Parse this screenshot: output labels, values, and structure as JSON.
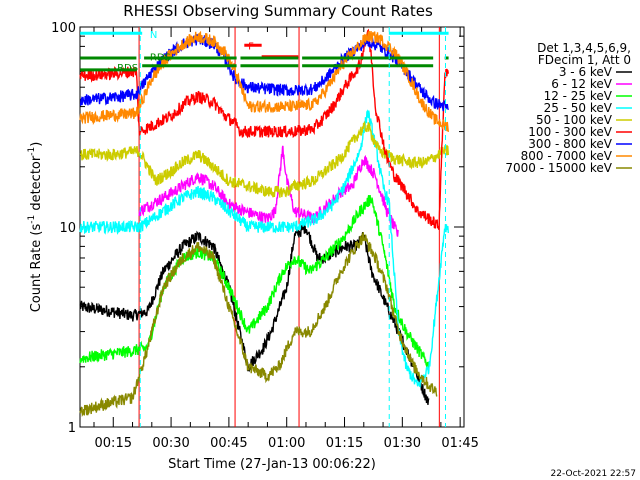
{
  "chart_data": {
    "type": "line",
    "title": "RHESSI Observing Summary Count Rates",
    "xlabel": "Start Time (27-Jan-13 00:06:22)",
    "ylabel": "Count Rate (s",
    "ylabel_sup": "-1",
    "ylabel_tail": " detector",
    "ylabel_end": ")",
    "yscale": "log",
    "ylim": [
      1,
      100
    ],
    "xlim_minutes": [
      6.37,
      106
    ],
    "y_tick_labels": [
      "1",
      "10",
      "100"
    ],
    "x_tick_labels": [
      "00:15",
      "00:30",
      "00:45",
      "01:00",
      "01:15",
      "01:30",
      "01:45"
    ],
    "x_ticks_minutes": [
      15,
      30,
      45,
      60,
      75,
      90,
      105
    ],
    "legend_header": [
      "Det 1,3,4,5,6,9,",
      "FDecim 1, Att 0"
    ],
    "legend_position": "right",
    "series": [
      {
        "name": "3 - 6 keV",
        "color": "#000000",
        "points": [
          [
            6.4,
            4
          ],
          [
            14,
            3.8
          ],
          [
            20,
            3.6
          ],
          [
            24,
            3.8
          ],
          [
            28,
            6
          ],
          [
            33,
            8
          ],
          [
            37,
            9
          ],
          [
            41,
            8
          ],
          [
            45,
            5
          ],
          [
            50,
            2
          ],
          [
            54,
            2.5
          ],
          [
            56,
            3
          ],
          [
            60,
            5
          ],
          [
            62,
            9
          ],
          [
            65,
            10
          ],
          [
            68,
            7
          ],
          [
            70,
            7
          ],
          [
            75,
            8
          ],
          [
            78,
            8
          ],
          [
            80,
            9
          ],
          [
            82,
            6
          ],
          [
            86,
            4
          ],
          [
            89,
            3
          ],
          [
            93,
            2
          ],
          [
            95,
            1.6
          ],
          [
            97,
            1.3
          ]
        ]
      },
      {
        "name": "6 - 12 keV",
        "color": "#ff00ff",
        "points": [
          [
            21.7,
            12
          ],
          [
            28,
            14
          ],
          [
            33,
            16
          ],
          [
            37,
            18
          ],
          [
            41,
            16
          ],
          [
            45,
            13
          ],
          [
            49,
            12
          ],
          [
            55,
            11
          ],
          [
            57,
            12
          ],
          [
            59,
            25
          ],
          [
            60,
            17
          ],
          [
            62,
            12
          ],
          [
            67,
            11
          ],
          [
            69,
            12
          ],
          [
            71,
            13
          ],
          [
            74,
            15
          ],
          [
            77,
            16
          ],
          [
            80,
            22
          ],
          [
            83,
            18
          ],
          [
            86,
            12
          ],
          [
            89,
            9
          ]
        ]
      },
      {
        "name": "12 - 25 keV",
        "color": "#00ff00",
        "points": [
          [
            6.4,
            2.2
          ],
          [
            13,
            2.3
          ],
          [
            20,
            2.4
          ],
          [
            24,
            2.5
          ],
          [
            28,
            5
          ],
          [
            33,
            7
          ],
          [
            37,
            7.5
          ],
          [
            41,
            7
          ],
          [
            45,
            5
          ],
          [
            50,
            3
          ],
          [
            55,
            4
          ],
          [
            59,
            6
          ],
          [
            62,
            7
          ],
          [
            66,
            6
          ],
          [
            70,
            7
          ],
          [
            75,
            9
          ],
          [
            79,
            12
          ],
          [
            82,
            14
          ],
          [
            85,
            8
          ],
          [
            88,
            4
          ],
          [
            91,
            3
          ],
          [
            97,
            2
          ]
        ]
      },
      {
        "name": "25 - 50 keV",
        "color": "#00ffff",
        "points": [
          [
            6.4,
            10
          ],
          [
            15,
            10
          ],
          [
            20,
            10
          ],
          [
            22,
            10
          ],
          [
            28,
            12
          ],
          [
            33,
            14
          ],
          [
            37,
            15
          ],
          [
            41,
            14
          ],
          [
            45,
            12
          ],
          [
            50,
            10
          ],
          [
            56,
            10
          ],
          [
            62,
            10
          ],
          [
            68,
            11
          ],
          [
            72,
            13
          ],
          [
            75,
            16
          ],
          [
            79,
            24
          ],
          [
            81,
            38
          ],
          [
            83,
            26
          ],
          [
            85,
            16
          ],
          [
            86.6,
            13
          ],
          [
            89,
            3
          ],
          [
            91,
            2
          ],
          [
            94,
            1.6
          ],
          [
            97,
            2
          ],
          [
            101,
            10
          ],
          [
            102,
            10
          ]
        ]
      },
      {
        "name": "50 - 100 keV",
        "color": "#cccc00",
        "points": [
          [
            6.4,
            23
          ],
          [
            15,
            23
          ],
          [
            21.7,
            24
          ],
          [
            26,
            17
          ],
          [
            30,
            19
          ],
          [
            33,
            21
          ],
          [
            37,
            23
          ],
          [
            41,
            20
          ],
          [
            45,
            17
          ],
          [
            50,
            16
          ],
          [
            55,
            15
          ],
          [
            60,
            15
          ],
          [
            62,
            16
          ],
          [
            67,
            17
          ],
          [
            70,
            19
          ],
          [
            74,
            22
          ],
          [
            79,
            30
          ],
          [
            81,
            32
          ],
          [
            84,
            24
          ],
          [
            88,
            22
          ],
          [
            92,
            21
          ],
          [
            96,
            21
          ],
          [
            101,
            24
          ],
          [
            102,
            24
          ]
        ]
      },
      {
        "name": "100 - 300 keV",
        "color": "#ff0000",
        "points": [
          [
            6.4,
            57
          ],
          [
            13,
            58
          ],
          [
            21,
            60
          ],
          [
            21.7,
            30
          ],
          [
            25,
            32
          ],
          [
            30,
            36
          ],
          [
            34,
            42
          ],
          [
            37,
            45
          ],
          [
            41,
            42
          ],
          [
            44,
            36
          ],
          [
            46.6,
            33
          ],
          [
            48,
            30
          ],
          [
            55,
            30
          ],
          [
            62,
            30
          ],
          [
            67,
            31
          ],
          [
            69,
            34
          ],
          [
            72,
            40
          ],
          [
            75,
            50
          ],
          [
            79,
            65
          ],
          [
            81,
            95
          ],
          [
            82,
            70
          ],
          [
            83,
            40
          ],
          [
            86,
            22
          ],
          [
            88,
            18
          ],
          [
            91,
            15
          ],
          [
            94,
            12
          ],
          [
            97,
            11
          ],
          [
            99.5,
            10
          ],
          [
            101,
            58
          ],
          [
            102,
            58
          ]
        ]
      },
      {
        "name": "300 - 800 keV",
        "color": "#0000ff",
        "points": [
          [
            6.4,
            43
          ],
          [
            13,
            44
          ],
          [
            21,
            46
          ],
          [
            25,
            60
          ],
          [
            29,
            72
          ],
          [
            33,
            82
          ],
          [
            37,
            87
          ],
          [
            41,
            82
          ],
          [
            44,
            70
          ],
          [
            46.6,
            55
          ],
          [
            50,
            50
          ],
          [
            55,
            49
          ],
          [
            62,
            48
          ],
          [
            67,
            49
          ],
          [
            70,
            55
          ],
          [
            74,
            67
          ],
          [
            78,
            78
          ],
          [
            81,
            85
          ],
          [
            84,
            80
          ],
          [
            88,
            70
          ],
          [
            91,
            60
          ],
          [
            95,
            48
          ],
          [
            98,
            42
          ],
          [
            101,
            40
          ],
          [
            102,
            39
          ]
        ]
      },
      {
        "name": "800 - 7000 keV",
        "color": "#ff8800",
        "points": [
          [
            6.4,
            35
          ],
          [
            13,
            36
          ],
          [
            21,
            37
          ],
          [
            25,
            55
          ],
          [
            29,
            70
          ],
          [
            33,
            82
          ],
          [
            37,
            90
          ],
          [
            41,
            85
          ],
          [
            44,
            75
          ],
          [
            46.6,
            60
          ],
          [
            50,
            40
          ],
          [
            55,
            40
          ],
          [
            62,
            40
          ],
          [
            67,
            41
          ],
          [
            70,
            48
          ],
          [
            74,
            63
          ],
          [
            78,
            78
          ],
          [
            81,
            90
          ],
          [
            84,
            88
          ],
          [
            88,
            75
          ],
          [
            91,
            60
          ],
          [
            95,
            42
          ],
          [
            98,
            35
          ],
          [
            101,
            32
          ],
          [
            102,
            32
          ]
        ]
      },
      {
        "name": "7000 - 15000 keV",
        "color": "#888800",
        "points": [
          [
            6.4,
            1.2
          ],
          [
            13,
            1.3
          ],
          [
            20,
            1.4
          ],
          [
            24,
            2.5
          ],
          [
            28,
            5
          ],
          [
            33,
            7
          ],
          [
            37,
            8
          ],
          [
            41,
            7
          ],
          [
            45,
            4
          ],
          [
            50,
            2
          ],
          [
            55,
            1.8
          ],
          [
            58,
            2
          ],
          [
            62,
            3
          ],
          [
            66,
            3
          ],
          [
            70,
            4
          ],
          [
            74,
            6
          ],
          [
            78,
            8
          ],
          [
            80,
            9
          ],
          [
            83,
            7
          ],
          [
            86,
            5
          ],
          [
            89,
            3
          ],
          [
            93,
            2
          ],
          [
            97,
            1.6
          ],
          [
            99,
            1.5
          ]
        ]
      }
    ],
    "flag_bars": [
      {
        "label": "N",
        "color": "#00ffff",
        "y": 93,
        "segments": [
          [
            6.4,
            22.5
          ],
          [
            86.5,
            102
          ]
        ]
      },
      {
        "label": "F",
        "color": "#ff0000",
        "y": 81,
        "segments": [
          [
            49,
            53.5
          ]
        ]
      },
      {
        "label": "F",
        "color": "#ff0000",
        "y": 71,
        "segments": [
          [
            53.5,
            63
          ]
        ]
      },
      {
        "label": "RDS",
        "color": "#008800",
        "y": 70,
        "segments": [
          [
            6.4,
            21
          ],
          [
            23,
            47
          ],
          [
            48,
            63
          ],
          [
            64,
            98
          ],
          [
            101,
            102
          ]
        ]
      },
      {
        "label": "RDS",
        "color": "#008800",
        "y": 64,
        "segments": [
          [
            22.5,
            47
          ],
          [
            48,
            63
          ],
          [
            64,
            98
          ]
        ]
      },
      {
        "label": "RDS",
        "color": "#008800",
        "y": 61,
        "segments": [
          [
            6.4,
            21
          ]
        ]
      }
    ],
    "flag_labels": [
      {
        "text": "N",
        "color": "#00ffff",
        "x": 24.5,
        "y": 92
      },
      {
        "text": "F",
        "color": "#ff0000",
        "x": 50.0,
        "y": 81
      },
      {
        "text": "RDS",
        "color": "#008800",
        "x": 24.5,
        "y": 71
      },
      {
        "text": "RDS",
        "color": "#008800",
        "x": 16.0,
        "y": 63
      }
    ],
    "dashed_markers_minutes": [
      {
        "x": 22.0,
        "color": "#00ffff"
      },
      {
        "x": 86.6,
        "color": "#00ffff"
      },
      {
        "x": 101.2,
        "color": "#00ffff"
      }
    ],
    "state_transitions_minutes": [
      {
        "x": 21.7,
        "color": "#ff0000"
      },
      {
        "x": 46.6,
        "color": "#ff0000"
      },
      {
        "x": 63.2,
        "color": "#ff0000"
      },
      {
        "x": 99.6,
        "color": "#ff0000"
      }
    ]
  },
  "footer_date": "22-Oct-2021 22:57"
}
